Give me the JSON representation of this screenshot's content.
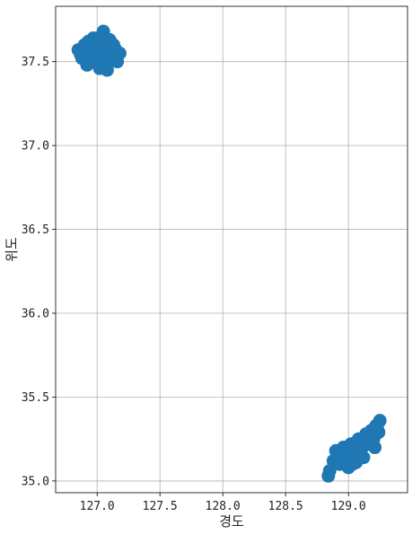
{
  "chart_data": {
    "type": "scatter",
    "title": "",
    "xlabel": "경도",
    "ylabel": "위도",
    "xlim": [
      126.67,
      129.47
    ],
    "ylim": [
      34.93,
      37.83
    ],
    "xticks": [
      127.0,
      127.5,
      128.0,
      128.5,
      129.0
    ],
    "xtick_labels": [
      "127.0",
      "127.5",
      "128.0",
      "128.5",
      "129.0"
    ],
    "yticks": [
      35.0,
      35.5,
      36.0,
      36.5,
      37.0,
      37.5
    ],
    "ytick_labels": [
      "35.0",
      "35.5",
      "36.0",
      "36.5",
      "37.0",
      "37.5"
    ],
    "grid": true,
    "legend": "none",
    "series": [
      {
        "color": "#1f77b4",
        "points": [
          [
            126.85,
            37.57
          ],
          [
            126.88,
            37.52
          ],
          [
            126.9,
            37.6
          ],
          [
            126.92,
            37.48
          ],
          [
            126.95,
            37.55
          ],
          [
            126.97,
            37.64
          ],
          [
            126.98,
            37.5
          ],
          [
            127.0,
            37.58
          ],
          [
            127.02,
            37.46
          ],
          [
            127.03,
            37.53
          ],
          [
            127.04,
            37.66
          ],
          [
            127.06,
            37.6
          ],
          [
            127.07,
            37.49
          ],
          [
            127.09,
            37.56
          ],
          [
            127.1,
            37.63
          ],
          [
            127.12,
            37.52
          ],
          [
            127.14,
            37.58
          ],
          [
            127.16,
            37.5
          ],
          [
            127.18,
            37.55
          ],
          [
            126.93,
            37.62
          ],
          [
            127.05,
            37.68
          ],
          [
            127.08,
            37.45
          ],
          [
            126.87,
            37.54
          ],
          [
            127.13,
            37.6
          ],
          [
            127.01,
            37.52
          ],
          [
            128.85,
            35.06
          ],
          [
            128.88,
            35.12
          ],
          [
            128.9,
            35.18
          ],
          [
            128.93,
            35.1
          ],
          [
            128.96,
            35.2
          ],
          [
            128.98,
            35.14
          ],
          [
            129.0,
            35.08
          ],
          [
            129.02,
            35.22
          ],
          [
            129.04,
            35.16
          ],
          [
            129.06,
            35.11
          ],
          [
            129.08,
            35.25
          ],
          [
            129.1,
            35.19
          ],
          [
            129.12,
            35.14
          ],
          [
            129.14,
            35.28
          ],
          [
            129.16,
            35.22
          ],
          [
            129.18,
            35.3
          ],
          [
            129.2,
            35.25
          ],
          [
            129.22,
            35.33
          ],
          [
            129.24,
            35.29
          ],
          [
            129.25,
            35.36
          ],
          [
            129.21,
            35.2
          ],
          [
            129.07,
            35.17
          ],
          [
            128.95,
            35.15
          ],
          [
            129.13,
            35.23
          ],
          [
            129.17,
            35.26
          ],
          [
            128.84,
            35.03
          ],
          [
            129.03,
            35.1
          ],
          [
            129.11,
            35.2
          ],
          [
            129.19,
            35.23
          ],
          [
            129.23,
            35.31
          ]
        ]
      }
    ]
  }
}
